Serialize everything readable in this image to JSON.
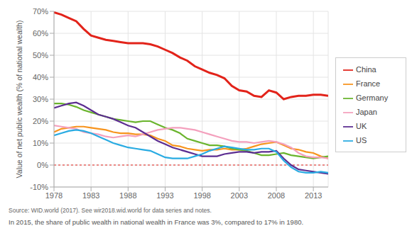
{
  "chart_data": {
    "type": "line",
    "y_label": "Value of net public wealth (% of national wealth)",
    "source": "Source: WID.world (2017). See wir2018.wid.world for data series and notes.",
    "caption": "In 2015, the share of public wealth in national wealth in France was 3%, compared to 17% in 1980.",
    "x": [
      1978,
      1979,
      1980,
      1981,
      1982,
      1983,
      1984,
      1985,
      1986,
      1987,
      1988,
      1989,
      1990,
      1991,
      1992,
      1993,
      1994,
      1995,
      1996,
      1997,
      1998,
      1999,
      2000,
      2001,
      2002,
      2003,
      2004,
      2005,
      2006,
      2007,
      2008,
      2009,
      2010,
      2011,
      2012,
      2013,
      2014,
      2015
    ],
    "series": [
      {
        "name": "China",
        "color": "#e2231a",
        "values": [
          69.5,
          68.5,
          67,
          65.5,
          62,
          59,
          58,
          57,
          56.5,
          56,
          55.5,
          55.5,
          55.5,
          55,
          54,
          52.5,
          51,
          49,
          47.5,
          45,
          43.5,
          42,
          41,
          39.5,
          36,
          34,
          33.5,
          31.5,
          31,
          34,
          33,
          30,
          31,
          31.5,
          31.5,
          32,
          32,
          31.5
        ]
      },
      {
        "name": "France",
        "color": "#f7941d",
        "values": [
          15,
          16.5,
          17,
          17.5,
          17.5,
          17,
          16.5,
          16,
          15,
          14.5,
          14.5,
          14,
          14,
          13.5,
          12,
          11,
          9,
          8.5,
          7.5,
          7,
          6.5,
          7,
          7,
          7.5,
          7,
          7,
          7.5,
          8.5,
          9.5,
          10,
          10.5,
          9,
          7.5,
          7,
          6,
          5.5,
          4,
          3
        ]
      },
      {
        "name": "Germany",
        "color": "#6ab42d",
        "values": [
          28,
          28,
          27.5,
          26.5,
          25,
          24,
          23,
          22,
          21,
          20.5,
          20,
          19.5,
          20,
          20,
          18.5,
          17,
          16,
          14.5,
          12,
          11,
          10,
          9,
          9,
          8.5,
          7.5,
          7,
          6.5,
          5.5,
          4.5,
          4.5,
          5,
          5.5,
          4.5,
          4,
          3.5,
          3,
          3.5,
          4
        ]
      },
      {
        "name": "Japan",
        "color": "#f4a0bd",
        "values": [
          18,
          17.5,
          17,
          16.5,
          15,
          14.5,
          14,
          13,
          12.5,
          13,
          13.5,
          13,
          14,
          15,
          16,
          16.5,
          17,
          17,
          16.5,
          16,
          15,
          14,
          13,
          12,
          11,
          10.5,
          10.5,
          10,
          10.5,
          11,
          10.5,
          9.5,
          8,
          5.5,
          4,
          3.5,
          3.5,
          3
        ]
      },
      {
        "name": "UK",
        "color": "#5c2d91",
        "values": [
          26,
          27,
          28,
          28.5,
          27,
          25,
          23,
          22,
          21,
          19.5,
          18,
          17,
          15,
          13,
          11,
          9.5,
          8,
          7,
          6,
          5,
          4,
          4,
          4,
          5,
          5.5,
          6,
          6,
          5.5,
          6,
          6,
          6.5,
          3,
          0,
          -2,
          -2.5,
          -3,
          -3.5,
          -4
        ]
      },
      {
        "name": "US",
        "color": "#29abe2",
        "values": [
          13.5,
          14.5,
          15.5,
          16,
          15.5,
          14.5,
          13,
          11.5,
          10,
          9,
          8,
          7.5,
          7,
          6.5,
          5,
          3.5,
          3,
          3,
          3,
          4,
          5,
          6.5,
          7.5,
          8.5,
          8,
          7.5,
          7,
          7,
          7.5,
          7.5,
          6,
          2,
          -1,
          -3,
          -3.5,
          -3.5,
          -3,
          -3.5
        ]
      }
    ],
    "xlim": [
      1978,
      2015
    ],
    "xticks": [
      1978,
      1983,
      1988,
      1993,
      1998,
      2003,
      2008,
      2013
    ],
    "ylim": [
      -10,
      70
    ],
    "yticks": [
      {
        "value": -10,
        "label": "-10%"
      },
      {
        "value": 0,
        "label": "0%"
      },
      {
        "value": 10,
        "label": "10%"
      },
      {
        "value": 20,
        "label": "20%"
      },
      {
        "value": 30,
        "label": "30%"
      },
      {
        "value": 40,
        "label": "40%"
      },
      {
        "value": 50,
        "label": "50%"
      },
      {
        "value": 60,
        "label": "60%"
      },
      {
        "value": 70,
        "label": "70%"
      }
    ],
    "hline": 0,
    "grid": true,
    "legend": "right"
  }
}
